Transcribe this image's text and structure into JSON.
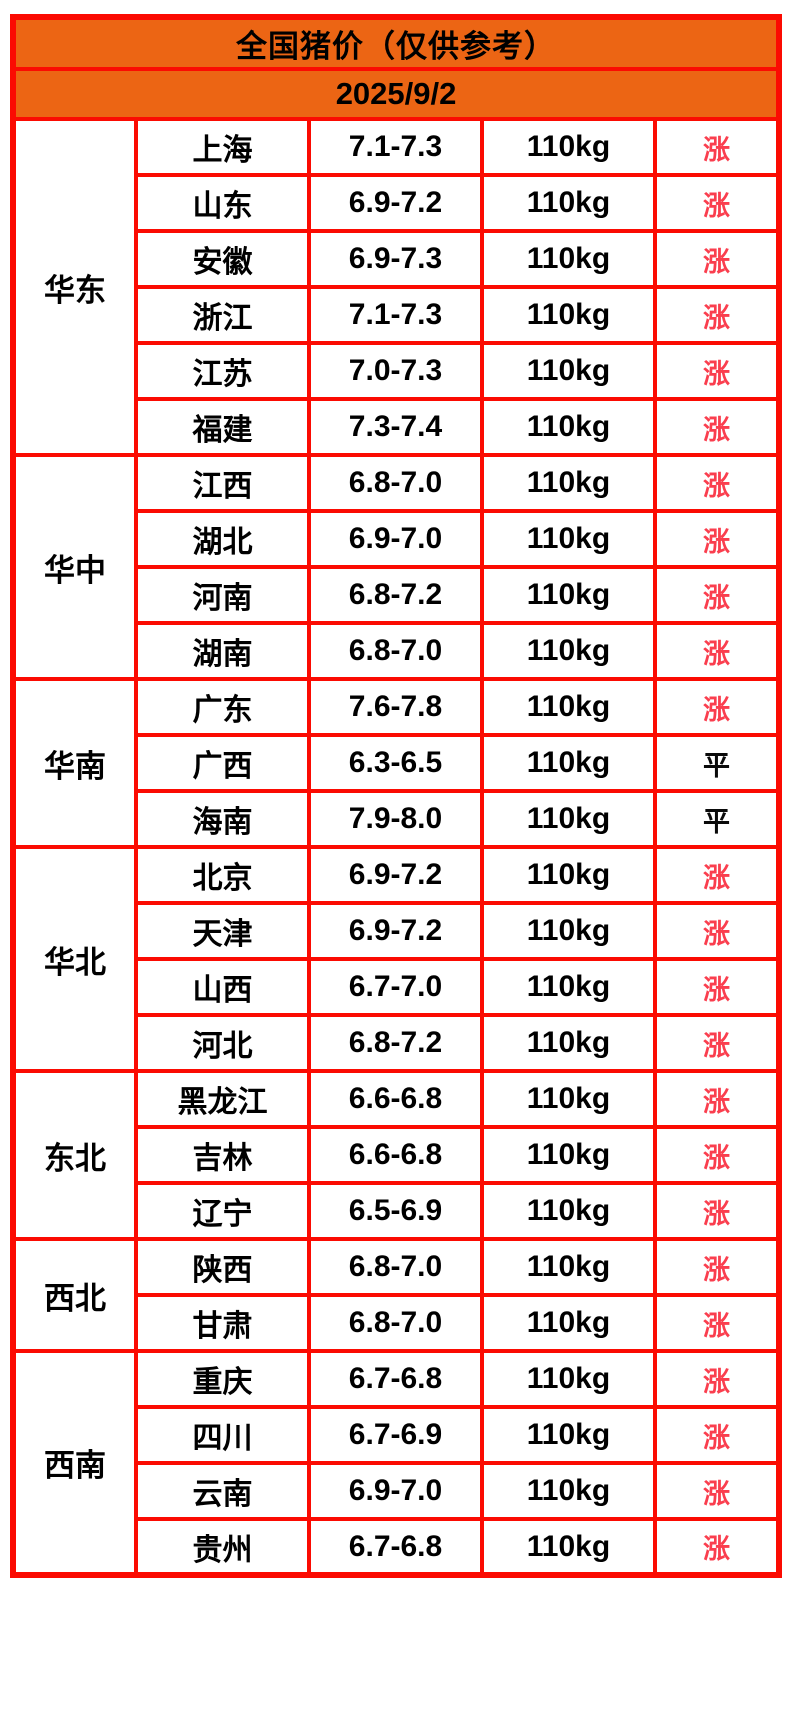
{
  "chart_data": {
    "type": "table",
    "title": "全国猪价（仅供参考）",
    "date": "2025/9/2",
    "colors": {
      "header_bg": "#ec6514",
      "border_red": "#fb0b02",
      "rise_red": "#fa3e4e",
      "flat_black": "#0a0a0a"
    },
    "status_styles": {
      "涨": "rise",
      "平": "flat"
    },
    "regions": [
      {
        "name": "华东",
        "rows": [
          {
            "province": "上海",
            "price": "7.1-7.3",
            "weight": "110kg",
            "status": "涨"
          },
          {
            "province": "山东",
            "price": "6.9-7.2",
            "weight": "110kg",
            "status": "涨"
          },
          {
            "province": "安徽",
            "price": "6.9-7.3",
            "weight": "110kg",
            "status": "涨"
          },
          {
            "province": "浙江",
            "price": "7.1-7.3",
            "weight": "110kg",
            "status": "涨"
          },
          {
            "province": "江苏",
            "price": "7.0-7.3",
            "weight": "110kg",
            "status": "涨"
          },
          {
            "province": "福建",
            "price": "7.3-7.4",
            "weight": "110kg",
            "status": "涨"
          }
        ]
      },
      {
        "name": "华中",
        "rows": [
          {
            "province": "江西",
            "price": "6.8-7.0",
            "weight": "110kg",
            "status": "涨"
          },
          {
            "province": "湖北",
            "price": "6.9-7.0",
            "weight": "110kg",
            "status": "涨"
          },
          {
            "province": "河南",
            "price": "6.8-7.2",
            "weight": "110kg",
            "status": "涨"
          },
          {
            "province": "湖南",
            "price": "6.8-7.0",
            "weight": "110kg",
            "status": "涨"
          }
        ]
      },
      {
        "name": "华南",
        "rows": [
          {
            "province": "广东",
            "price": "7.6-7.8",
            "weight": "110kg",
            "status": "涨"
          },
          {
            "province": "广西",
            "price": "6.3-6.5",
            "weight": "110kg",
            "status": "平"
          },
          {
            "province": "海南",
            "price": "7.9-8.0",
            "weight": "110kg",
            "status": "平"
          }
        ]
      },
      {
        "name": "华北",
        "rows": [
          {
            "province": "北京",
            "price": "6.9-7.2",
            "weight": "110kg",
            "status": "涨"
          },
          {
            "province": "天津",
            "price": "6.9-7.2",
            "weight": "110kg",
            "status": "涨"
          },
          {
            "province": "山西",
            "price": "6.7-7.0",
            "weight": "110kg",
            "status": "涨"
          },
          {
            "province": "河北",
            "price": "6.8-7.2",
            "weight": "110kg",
            "status": "涨"
          }
        ]
      },
      {
        "name": "东北",
        "rows": [
          {
            "province": "黑龙江",
            "price": "6.6-6.8",
            "weight": "110kg",
            "status": "涨"
          },
          {
            "province": "吉林",
            "price": "6.6-6.8",
            "weight": "110kg",
            "status": "涨"
          },
          {
            "province": "辽宁",
            "price": "6.5-6.9",
            "weight": "110kg",
            "status": "涨"
          }
        ]
      },
      {
        "name": "西北",
        "rows": [
          {
            "province": "陕西",
            "price": "6.8-7.0",
            "weight": "110kg",
            "status": "涨"
          },
          {
            "province": "甘肃",
            "price": "6.8-7.0",
            "weight": "110kg",
            "status": "涨"
          }
        ]
      },
      {
        "name": "西南",
        "rows": [
          {
            "province": "重庆",
            "price": "6.7-6.8",
            "weight": "110kg",
            "status": "涨"
          },
          {
            "province": "四川",
            "price": "6.7-6.9",
            "weight": "110kg",
            "status": "涨"
          },
          {
            "province": "云南",
            "price": "6.9-7.0",
            "weight": "110kg",
            "status": "涨"
          },
          {
            "province": "贵州",
            "price": "6.7-6.8",
            "weight": "110kg",
            "status": "涨"
          }
        ]
      }
    ]
  }
}
